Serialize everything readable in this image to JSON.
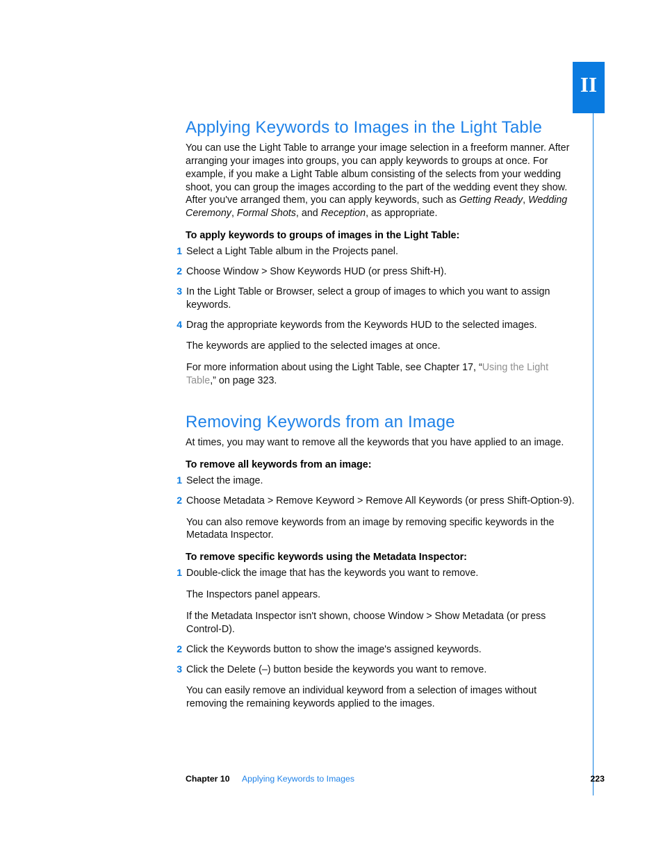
{
  "section_tab": "II",
  "sec1": {
    "heading": "Applying Keywords to Images in the Light Table",
    "intro_pre": "You can use the Light Table to arrange your image selection in a freeform manner. After arranging your images into groups, you can apply keywords to groups at once. For example, if you make a Light Table album consisting of the selects from your wedding shoot, you can group the images according to the part of the wedding event they show. After you've arranged them, you can apply keywords, such as ",
    "kw1": "Getting Ready",
    "kw2": "Wedding Ceremony",
    "kw3": "Formal Shots",
    "kw4": "Reception",
    "intro_post": ", as appropriate.",
    "subhead": "To apply keywords to groups of images in the Light Table:",
    "step1": "Select a Light Table album in the Projects panel.",
    "step2": "Choose Window > Show Keywords HUD (or press Shift-H).",
    "step3": "In the Light Table or Browser, select a group of images to which you want to assign keywords.",
    "step4": "Drag the appropriate keywords from the Keywords HUD to the selected images.",
    "step4b": "The keywords are applied to the selected images at once.",
    "step4c_pre": "For more information about using the Light Table, see Chapter 17, “",
    "step4c_link": "Using the Light Table",
    "step4c_post": ",” on page 323."
  },
  "sec2": {
    "heading": "Removing Keywords from an Image",
    "intro": "At times, you may want to remove all the keywords that you have applied to an image.",
    "subhead_a": "To remove all keywords from an image:",
    "a1": "Select the image.",
    "a2": "Choose Metadata > Remove Keyword > Remove All Keywords (or press Shift-Option-9).",
    "a2b": "You can also remove keywords from an image by removing specific keywords in the Metadata Inspector.",
    "subhead_b": "To remove specific keywords using the Metadata Inspector:",
    "b1": "Double-click the image that has the keywords you want to remove.",
    "b1b": "The Inspectors panel appears.",
    "b1c": "If the Metadata Inspector isn't shown, choose Window > Show Metadata (or press Control-D).",
    "b2": "Click the Keywords button to show the image's assigned keywords.",
    "b3": "Click the Delete (–) button beside the keywords you want to remove.",
    "b3b": "You can easily remove an individual keyword from a selection of images without removing the remaining keywords applied to the images."
  },
  "footer": {
    "chapter_label": "Chapter 10",
    "chapter_title": "Applying Keywords to Images",
    "page": "223"
  }
}
